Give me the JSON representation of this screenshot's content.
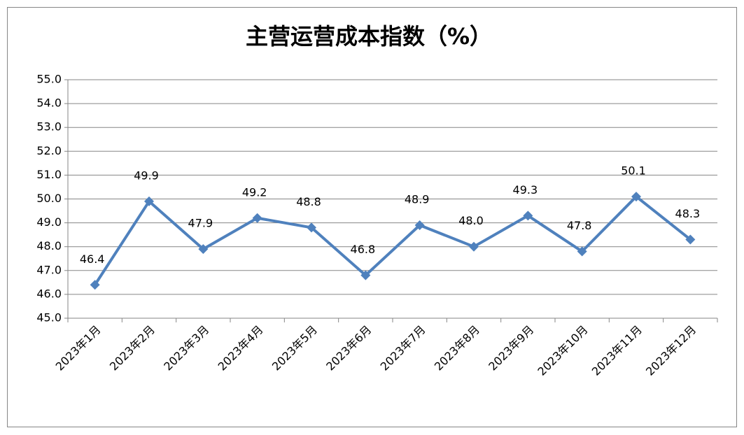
{
  "chart_data": {
    "type": "line",
    "title": "主营运营成本指数（%）",
    "categories": [
      "2023年1月",
      "2023年2月",
      "2023年3月",
      "2023年4月",
      "2023年5月",
      "2023年6月",
      "2023年7月",
      "2023年8月",
      "2023年9月",
      "2023年10月",
      "2023年11月",
      "2023年12月"
    ],
    "series": [
      {
        "name": "主营运营成本指数",
        "color": "#4f81bd",
        "values": [
          46.4,
          49.9,
          47.9,
          49.2,
          48.8,
          46.8,
          48.9,
          48.0,
          49.3,
          47.8,
          50.1,
          48.3
        ],
        "value_labels": [
          "46.4",
          "49.9",
          "47.9",
          "49.2",
          "48.8",
          "46.8",
          "48.9",
          "48.0",
          "49.3",
          "47.8",
          "50.1",
          "48.3"
        ]
      }
    ],
    "ylim": [
      45,
      55
    ],
    "yticks": [
      {
        "value": 45,
        "label": "45.0"
      },
      {
        "value": 46,
        "label": "46.0"
      },
      {
        "value": 47,
        "label": "47.0"
      },
      {
        "value": 48,
        "label": "48.0"
      },
      {
        "value": 49,
        "label": "49.0"
      },
      {
        "value": 50,
        "label": "50.0"
      },
      {
        "value": 51,
        "label": "51.0"
      },
      {
        "value": 52,
        "label": "52.0"
      },
      {
        "value": 53,
        "label": "53.0"
      },
      {
        "value": 54,
        "label": "54.0"
      },
      {
        "value": 55,
        "label": "55.0"
      }
    ],
    "grid": true
  }
}
